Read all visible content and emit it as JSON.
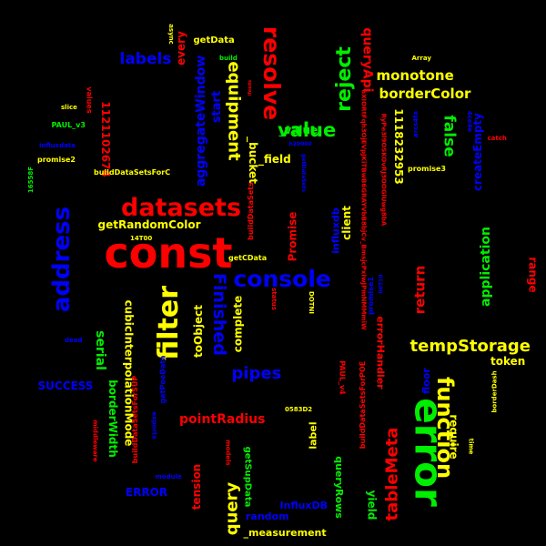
{
  "colors": {
    "background": "#000000",
    "red": "#ff0000",
    "blue": "#0000ff",
    "green": "#00ee00",
    "yellow": "#ffff00"
  },
  "words": [
    {
      "text": "const",
      "color": "red"
    },
    {
      "text": "error",
      "color": "green"
    },
    {
      "text": "datasets",
      "color": "red"
    },
    {
      "text": "address",
      "color": "blue"
    },
    {
      "text": "filter",
      "color": "yellow"
    },
    {
      "text": "console",
      "color": "blue"
    },
    {
      "text": "function",
      "color": "yellow"
    },
    {
      "text": "resolve",
      "color": "red"
    },
    {
      "text": "reject",
      "color": "green"
    },
    {
      "text": "value",
      "color": "green"
    },
    {
      "text": "Finished",
      "color": "blue"
    },
    {
      "text": "tableMeta",
      "color": "red"
    },
    {
      "text": "query",
      "color": "yellow"
    },
    {
      "text": "tempStorage",
      "color": "yellow"
    },
    {
      "text": "equipment",
      "color": "yellow"
    },
    {
      "text": "pipes",
      "color": "blue"
    },
    {
      "text": "labels",
      "color": "blue"
    },
    {
      "text": "false",
      "color": "green"
    },
    {
      "text": "monotone",
      "color": "yellow"
    },
    {
      "text": "borderColor",
      "color": "yellow"
    },
    {
      "text": "queryApi",
      "color": "red"
    },
    {
      "text": "pointRadius",
      "color": "red"
    },
    {
      "text": "serial",
      "color": "green"
    },
    {
      "text": "application",
      "color": "green"
    },
    {
      "text": "return",
      "color": "red"
    },
    {
      "text": "aggregateWindow",
      "color": "blue"
    },
    {
      "text": "getRandomColor",
      "color": "yellow"
    },
    {
      "text": "cubicInterpolationMode",
      "color": "yellow"
    },
    {
      "text": "createEmpty",
      "color": "blue"
    },
    {
      "text": "1118232953",
      "color": "yellow"
    },
    {
      "text": "1121102674",
      "color": "red"
    },
    {
      "text": "_value",
      "color": "green"
    },
    {
      "text": "_field",
      "color": "yellow"
    },
    {
      "text": "_bucket",
      "color": "yellow"
    },
    {
      "text": "Promise",
      "color": "red"
    },
    {
      "text": "client",
      "color": "yellow"
    },
    {
      "text": "influxdb",
      "color": "blue"
    },
    {
      "text": "complete",
      "color": "yellow"
    },
    {
      "text": "toObject",
      "color": "yellow"
    },
    {
      "text": "start",
      "color": "blue"
    },
    {
      "text": "every",
      "color": "red"
    },
    {
      "text": "range",
      "color": "red"
    },
    {
      "text": "token",
      "color": "yellow"
    },
    {
      "text": "require",
      "color": "yellow"
    },
    {
      "text": "floor",
      "color": "blue"
    },
    {
      "text": "SUCCESS",
      "color": "blue"
    },
    {
      "text": "ERROR",
      "color": "blue"
    },
    {
      "text": "borderWidth",
      "color": "green"
    },
    {
      "text": "tension",
      "color": "red"
    },
    {
      "text": "random",
      "color": "blue"
    },
    {
      "text": "InfluxDB",
      "color": "blue"
    },
    {
      "text": "_measurement",
      "color": "yellow"
    },
    {
      "text": "queryRows",
      "color": "green"
    },
    {
      "text": "yield",
      "color": "green"
    },
    {
      "text": "label",
      "color": "yellow"
    },
    {
      "text": "errorHandler",
      "color": "red"
    },
    {
      "text": "getSupData",
      "color": "green"
    },
    {
      "text": "getData",
      "color": "yellow"
    },
    {
      "text": "getCData",
      "color": "yellow"
    },
    {
      "text": "buildDataSetsForC",
      "color": "yellow"
    },
    {
      "text": "buildDataSetsForSUP",
      "color": "red"
    },
    {
      "text": "buildDataSetsForPOE",
      "color": "red"
    },
    {
      "text": "buildDataSets",
      "color": "red"
    },
    {
      "text": "getPoeData",
      "color": "blue"
    },
    {
      "text": "promise1",
      "color": "blue"
    },
    {
      "text": "promise2",
      "color": "yellow"
    },
    {
      "text": "promise3",
      "color": "yellow"
    },
    {
      "text": "PAUL_v3",
      "color": "green"
    },
    {
      "text": "PAUL_v4",
      "color": "red"
    },
    {
      "text": "influxdata",
      "color": "blue"
    },
    {
      "text": "values",
      "color": "red"
    },
    {
      "text": "slice",
      "color": "yellow"
    },
    {
      "text": "Array",
      "color": "yellow"
    },
    {
      "text": "build",
      "color": "green"
    },
    {
      "text": "async",
      "color": "yellow"
    },
    {
      "text": "catch",
      "color": "red"
    },
    {
      "text": "time",
      "color": "yellow"
    },
    {
      "text": "borderDash",
      "color": "yellow"
    },
    {
      "text": "module",
      "color": "blue"
    },
    {
      "text": "models",
      "color": "red"
    },
    {
      "text": "middleware",
      "color": "red"
    },
    {
      "text": "exports",
      "color": "blue"
    },
    {
      "text": "status",
      "color": "red"
    },
    {
      "text": "DOTNI",
      "color": "yellow"
    },
    {
      "text": "0583D2",
      "color": "yellow"
    },
    {
      "text": "14T00",
      "color": "yellow"
    },
    {
      "text": "16558F",
      "color": "green"
    },
    {
      "text": "h20000",
      "color": "blue"
    },
    {
      "text": "00T10",
      "color": "blue"
    },
    {
      "text": "ifeeds",
      "color": "red"
    },
    {
      "text": "4ce4e",
      "color": "blue"
    },
    {
      "text": "arcs4fa",
      "color": "blue"
    },
    {
      "text": "dead",
      "color": "blue"
    },
    {
      "text": "getDataSets",
      "color": "blue"
    },
    {
      "text": "6XIORtFqh3OjEVpJKiTBwB6GRAYVbB8bjCv_BmsjcPxIwJPmNMMmiW",
      "color": "red"
    },
    {
      "text": "RyPe3l9OSKOvRJ3OOGlUwg8bA",
      "color": "red"
    }
  ]
}
